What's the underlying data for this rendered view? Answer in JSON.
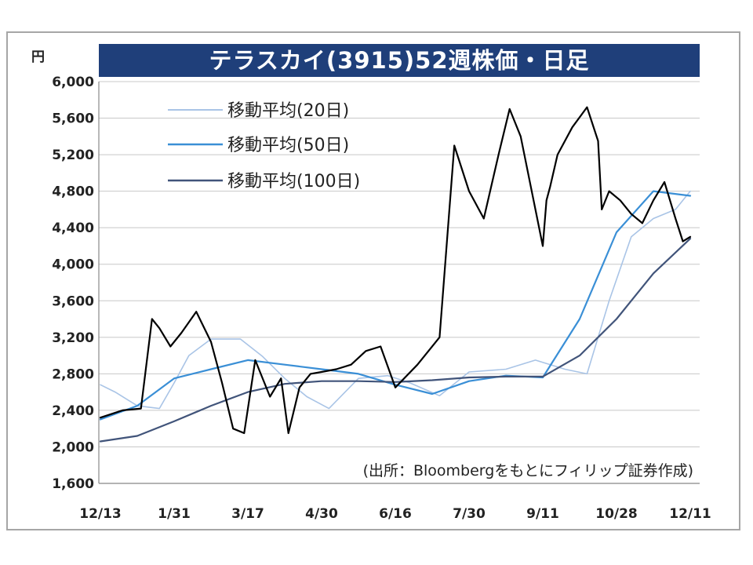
{
  "chart_data": {
    "type": "line",
    "title": "テラスカイ(3915)52週株価・日足",
    "unit": "円",
    "ylim": [
      1600,
      6000
    ],
    "yticks": [
      "6,000",
      "5,600",
      "5,200",
      "4,800",
      "4,400",
      "4,000",
      "3,600",
      "3,200",
      "2,800",
      "2,400",
      "2,000",
      "1,600"
    ],
    "ytick_values": [
      6000,
      5600,
      5200,
      4800,
      4400,
      4000,
      3600,
      3200,
      2800,
      2400,
      2000,
      1600
    ],
    "xticks": [
      "12/13",
      "1/31",
      "3/17",
      "4/30",
      "6/16",
      "7/30",
      "9/11",
      "10/28",
      "12/11"
    ],
    "grid": true,
    "legend_position": "top-left",
    "source_note": "(出所：Bloombergをもとにフィリップ証券作成)",
    "series": [
      {
        "name": "移動平均(20日)",
        "color": "#a9c4e6",
        "width": 1.6,
        "x": [
          0,
          0.2,
          0.5,
          0.8,
          1.0,
          1.2,
          1.5,
          1.9,
          2.2,
          2.5,
          2.8,
          3.1,
          3.5,
          3.9,
          4.2,
          4.6,
          5.0,
          5.5,
          5.9,
          6.3,
          6.6,
          6.9,
          7.2,
          7.5,
          7.8,
          8.0
        ],
        "y": [
          2680,
          2600,
          2450,
          2420,
          2700,
          3000,
          3180,
          3180,
          2990,
          2750,
          2550,
          2420,
          2750,
          2780,
          2700,
          2560,
          2820,
          2850,
          2950,
          2850,
          2800,
          3600,
          4300,
          4500,
          4600,
          4800
        ]
      },
      {
        "name": "移動平均(50日)",
        "color": "#3a8fd6",
        "width": 2.2,
        "x": [
          0,
          0.5,
          1.0,
          1.5,
          2.0,
          2.5,
          3.0,
          3.5,
          4.0,
          4.5,
          5.0,
          5.5,
          6.0,
          6.5,
          7.0,
          7.5,
          8.0
        ],
        "y": [
          2300,
          2450,
          2750,
          2850,
          2950,
          2900,
          2850,
          2800,
          2680,
          2580,
          2720,
          2780,
          2760,
          3400,
          4350,
          4800,
          4750
        ]
      },
      {
        "name": "移動平均(100日)",
        "color": "#41547a",
        "width": 2.2,
        "x": [
          0,
          0.5,
          1.0,
          1.5,
          2.0,
          2.5,
          3.0,
          3.5,
          4.0,
          4.5,
          5.0,
          5.5,
          6.0,
          6.5,
          7.0,
          7.5,
          8.0
        ],
        "y": [
          2060,
          2120,
          2280,
          2450,
          2600,
          2690,
          2720,
          2720,
          2710,
          2730,
          2760,
          2770,
          2770,
          3000,
          3400,
          3900,
          4280
        ]
      },
      {
        "name": "株価",
        "color": "#000000",
        "width": 2.2,
        "x": [
          0,
          0.3,
          0.55,
          0.7,
          0.8,
          0.95,
          1.1,
          1.3,
          1.5,
          1.65,
          1.8,
          1.95,
          2.1,
          2.3,
          2.45,
          2.55,
          2.7,
          2.85,
          3.0,
          3.2,
          3.4,
          3.6,
          3.8,
          4.0,
          4.3,
          4.6,
          4.8,
          5.0,
          5.2,
          5.4,
          5.55,
          5.7,
          5.9,
          6.0,
          6.05,
          6.1,
          6.2,
          6.4,
          6.6,
          6.75,
          6.8,
          6.9,
          7.05,
          7.2,
          7.35,
          7.5,
          7.65,
          7.8,
          7.9,
          8.0
        ],
        "y": [
          2320,
          2400,
          2420,
          3400,
          3300,
          3100,
          3250,
          3480,
          3150,
          2700,
          2200,
          2150,
          2950,
          2550,
          2750,
          2150,
          2650,
          2800,
          2820,
          2850,
          2900,
          3050,
          3100,
          2650,
          2900,
          3200,
          5300,
          4800,
          4500,
          5200,
          5700,
          5400,
          4600,
          4200,
          4700,
          4850,
          5200,
          5500,
          5720,
          5350,
          4600,
          4800,
          4700,
          4550,
          4450,
          4700,
          4900,
          4500,
          4250,
          4300
        ]
      }
    ]
  }
}
